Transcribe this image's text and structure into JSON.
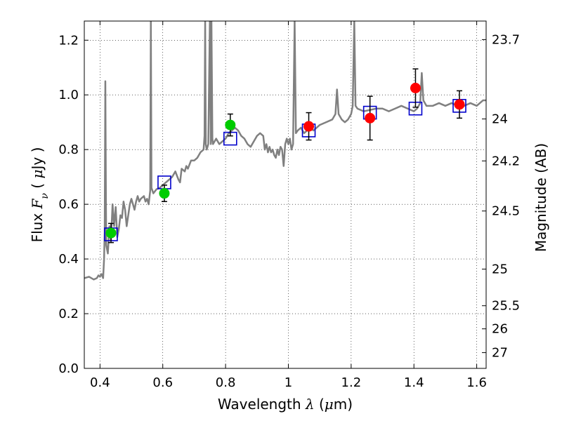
{
  "chart_data": {
    "type": "scatter",
    "title": "",
    "xlabel": {
      "prefix": "Wavelength ",
      "symbol": "λ",
      "unit_open": " (",
      "unit_symbol": "μ",
      "unit_rest": "m)"
    },
    "ylabel": {
      "prefix": "Flux ",
      "symbol": "F",
      "subscript": "ν",
      "unit_open": " ( ",
      "unit_symbol": "μ",
      "unit_rest": "Jy )"
    },
    "y2label": "Magnitude (AB)",
    "xlim": [
      0.35,
      1.63
    ],
    "ylim": [
      0.0,
      1.27
    ],
    "grid": true,
    "x_ticks": [
      {
        "value": 0.4,
        "label": "0.4"
      },
      {
        "value": 0.6,
        "label": "0.6"
      },
      {
        "value": 0.8,
        "label": "0.8"
      },
      {
        "value": 1.0,
        "label": "1"
      },
      {
        "value": 1.2,
        "label": "1.2"
      },
      {
        "value": 1.4,
        "label": "1.4"
      },
      {
        "value": 1.6,
        "label": "1.6"
      }
    ],
    "y_ticks": [
      {
        "value": 0.0,
        "label": "0.0"
      },
      {
        "value": 0.2,
        "label": "0.2"
      },
      {
        "value": 0.4,
        "label": "0.4"
      },
      {
        "value": 0.6,
        "label": "0.6"
      },
      {
        "value": 0.8,
        "label": "0.8"
      },
      {
        "value": 1.0,
        "label": "1.0"
      },
      {
        "value": 1.2,
        "label": "1.2"
      }
    ],
    "y2_ticks": [
      {
        "value": 23.7,
        "label": "23.7"
      },
      {
        "value": 24.0,
        "label": "24"
      },
      {
        "value": 24.2,
        "label": "24.2"
      },
      {
        "value": 24.5,
        "label": "24.5"
      },
      {
        "value": 25.0,
        "label": "25"
      },
      {
        "value": 25.5,
        "label": "25.5"
      },
      {
        "value": 26.0,
        "label": "26"
      },
      {
        "value": 27.0,
        "label": "27"
      }
    ],
    "series": [
      {
        "style": "line",
        "color": "#808080",
        "points": [
          [
            0.35,
            0.33
          ],
          [
            0.365,
            0.335
          ],
          [
            0.38,
            0.325
          ],
          [
            0.39,
            0.33
          ],
          [
            0.395,
            0.34
          ],
          [
            0.4,
            0.335
          ],
          [
            0.405,
            0.345
          ],
          [
            0.41,
            0.33
          ],
          [
            0.413,
            0.4
          ],
          [
            0.415,
            0.5
          ],
          [
            0.417,
            1.05
          ],
          [
            0.419,
            0.6
          ],
          [
            0.42,
            0.45
          ],
          [
            0.425,
            0.42
          ],
          [
            0.43,
            0.52
          ],
          [
            0.435,
            0.47
          ],
          [
            0.44,
            0.6
          ],
          [
            0.445,
            0.52
          ],
          [
            0.45,
            0.59
          ],
          [
            0.455,
            0.48
          ],
          [
            0.46,
            0.51
          ],
          [
            0.465,
            0.56
          ],
          [
            0.47,
            0.55
          ],
          [
            0.475,
            0.61
          ],
          [
            0.48,
            0.58
          ],
          [
            0.485,
            0.52
          ],
          [
            0.49,
            0.56
          ],
          [
            0.495,
            0.6
          ],
          [
            0.5,
            0.62
          ],
          [
            0.505,
            0.6
          ],
          [
            0.51,
            0.58
          ],
          [
            0.515,
            0.61
          ],
          [
            0.52,
            0.63
          ],
          [
            0.525,
            0.61
          ],
          [
            0.53,
            0.62
          ],
          [
            0.54,
            0.63
          ],
          [
            0.545,
            0.61
          ],
          [
            0.55,
            0.62
          ],
          [
            0.555,
            0.6
          ],
          [
            0.56,
            0.65
          ],
          [
            0.562,
            1.27
          ],
          [
            0.564,
            0.66
          ],
          [
            0.57,
            0.64
          ],
          [
            0.58,
            0.655
          ],
          [
            0.59,
            0.66
          ],
          [
            0.6,
            0.67
          ],
          [
            0.61,
            0.68
          ],
          [
            0.62,
            0.69
          ],
          [
            0.63,
            0.7
          ],
          [
            0.64,
            0.72
          ],
          [
            0.65,
            0.69
          ],
          [
            0.655,
            0.68
          ],
          [
            0.66,
            0.73
          ],
          [
            0.67,
            0.72
          ],
          [
            0.675,
            0.74
          ],
          [
            0.68,
            0.73
          ],
          [
            0.69,
            0.76
          ],
          [
            0.7,
            0.76
          ],
          [
            0.71,
            0.77
          ],
          [
            0.72,
            0.79
          ],
          [
            0.73,
            0.8
          ],
          [
            0.733,
            0.85
          ],
          [
            0.735,
            1.27
          ],
          [
            0.737,
            0.82
          ],
          [
            0.74,
            0.8
          ],
          [
            0.745,
            0.82
          ],
          [
            0.75,
            1.27
          ],
          [
            0.753,
            0.82
          ],
          [
            0.755,
            1.27
          ],
          [
            0.758,
            0.84
          ],
          [
            0.76,
            0.82
          ],
          [
            0.77,
            0.84
          ],
          [
            0.78,
            0.82
          ],
          [
            0.79,
            0.83
          ],
          [
            0.8,
            0.84
          ],
          [
            0.81,
            0.86
          ],
          [
            0.82,
            0.87
          ],
          [
            0.83,
            0.88
          ],
          [
            0.84,
            0.87
          ],
          [
            0.85,
            0.85
          ],
          [
            0.86,
            0.84
          ],
          [
            0.87,
            0.82
          ],
          [
            0.88,
            0.81
          ],
          [
            0.89,
            0.83
          ],
          [
            0.9,
            0.85
          ],
          [
            0.91,
            0.86
          ],
          [
            0.92,
            0.85
          ],
          [
            0.925,
            0.8
          ],
          [
            0.93,
            0.82
          ],
          [
            0.935,
            0.79
          ],
          [
            0.94,
            0.81
          ],
          [
            0.945,
            0.79
          ],
          [
            0.95,
            0.8
          ],
          [
            0.955,
            0.78
          ],
          [
            0.96,
            0.77
          ],
          [
            0.965,
            0.8
          ],
          [
            0.97,
            0.78
          ],
          [
            0.975,
            0.81
          ],
          [
            0.98,
            0.8
          ],
          [
            0.985,
            0.74
          ],
          [
            0.99,
            0.82
          ],
          [
            0.995,
            0.84
          ],
          [
            1.0,
            0.82
          ],
          [
            1.005,
            0.84
          ],
          [
            1.01,
            0.8
          ],
          [
            1.015,
            0.82
          ],
          [
            1.02,
            1.27
          ],
          [
            1.024,
            0.86
          ],
          [
            1.03,
            0.87
          ],
          [
            1.04,
            0.88
          ],
          [
            1.05,
            0.86
          ],
          [
            1.06,
            0.87
          ],
          [
            1.07,
            0.88
          ],
          [
            1.08,
            0.87
          ],
          [
            1.09,
            0.88
          ],
          [
            1.1,
            0.89
          ],
          [
            1.12,
            0.9
          ],
          [
            1.14,
            0.91
          ],
          [
            1.15,
            0.93
          ],
          [
            1.155,
            1.02
          ],
          [
            1.16,
            0.93
          ],
          [
            1.17,
            0.91
          ],
          [
            1.18,
            0.9
          ],
          [
            1.19,
            0.91
          ],
          [
            1.2,
            0.93
          ],
          [
            1.205,
            0.96
          ],
          [
            1.21,
            1.27
          ],
          [
            1.214,
            0.96
          ],
          [
            1.22,
            0.95
          ],
          [
            1.24,
            0.94
          ],
          [
            1.26,
            0.945
          ],
          [
            1.28,
            0.95
          ],
          [
            1.3,
            0.95
          ],
          [
            1.32,
            0.94
          ],
          [
            1.34,
            0.95
          ],
          [
            1.36,
            0.96
          ],
          [
            1.38,
            0.95
          ],
          [
            1.4,
            0.94
          ],
          [
            1.41,
            0.95
          ],
          [
            1.42,
            0.97
          ],
          [
            1.425,
            1.08
          ],
          [
            1.43,
            0.98
          ],
          [
            1.44,
            0.96
          ],
          [
            1.46,
            0.96
          ],
          [
            1.48,
            0.97
          ],
          [
            1.5,
            0.96
          ],
          [
            1.52,
            0.97
          ],
          [
            1.54,
            0.96
          ],
          [
            1.56,
            0.96
          ],
          [
            1.58,
            0.97
          ],
          [
            1.6,
            0.96
          ],
          [
            1.62,
            0.98
          ],
          [
            1.63,
            0.98
          ]
        ]
      },
      {
        "style": "open-square",
        "color": "#0000cc",
        "points": [
          [
            0.435,
            0.49
          ],
          [
            0.605,
            0.68
          ],
          [
            0.815,
            0.84
          ],
          [
            1.065,
            0.87
          ],
          [
            1.26,
            0.935
          ],
          [
            1.405,
            0.95
          ],
          [
            1.545,
            0.96
          ]
        ]
      },
      {
        "style": "errorbar-circle",
        "color": "#00cc00",
        "points": [
          {
            "x": 0.435,
            "y": 0.495,
            "err": 0.035
          },
          {
            "x": 0.605,
            "y": 0.64,
            "err": 0.03
          },
          {
            "x": 0.815,
            "y": 0.89,
            "err": 0.04
          }
        ]
      },
      {
        "style": "errorbar-circle",
        "color": "#ff0000",
        "points": [
          {
            "x": 1.065,
            "y": 0.885,
            "err": 0.05
          },
          {
            "x": 1.26,
            "y": 0.915,
            "err": 0.08
          },
          {
            "x": 1.405,
            "y": 1.025,
            "err": 0.07
          },
          {
            "x": 1.545,
            "y": 0.965,
            "err": 0.05
          }
        ]
      }
    ]
  }
}
